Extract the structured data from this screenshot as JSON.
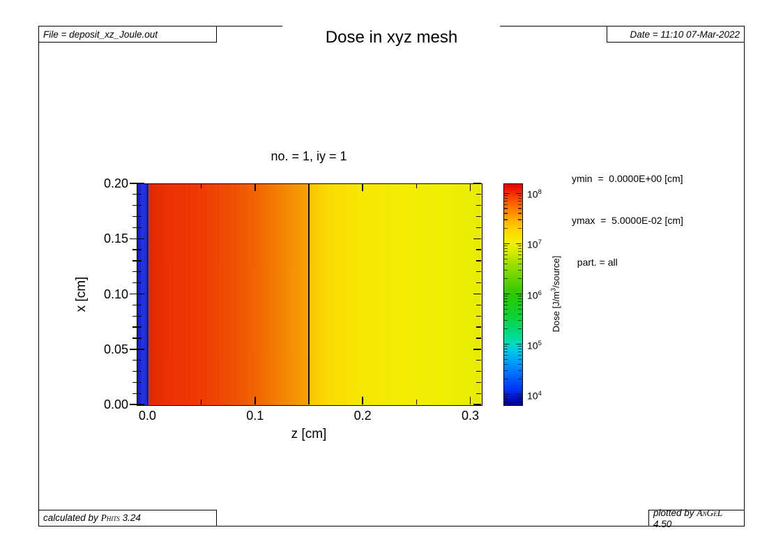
{
  "header": {
    "file_label": "File = deposit_xz_Joule.out",
    "title": "Dose in xyz mesh",
    "date_label": "Date = 11:10 07-Mar-2022"
  },
  "footer": {
    "calculated": {
      "prefix": "calculated by ",
      "brand": "Phits",
      "version": " 3.24"
    },
    "plotted": {
      "prefix": "plotted by ",
      "brand": "AnGeL",
      "version": " 4.50"
    }
  },
  "plot": {
    "subtitle": "no. =  1,  iy =  1",
    "info_lines": [
      "ymin  =  0.0000E+00 [cm]",
      "ymax  =  5.0000E-02 [cm]",
      "  part. = all"
    ],
    "xlabel": "z [cm]",
    "ylabel": "x [cm]"
  },
  "colorbar": {
    "label_pre": "Dose [J/m",
    "label_sup": "3",
    "label_post": "/source]"
  },
  "chart_data": {
    "type": "heatmap",
    "title": "Dose in xyz mesh",
    "subtitle": "no. = 1, iy = 1",
    "xlabel": "z [cm]",
    "ylabel": "x [cm]",
    "xlim": [
      -0.01,
      0.31
    ],
    "ylim": [
      0.0,
      0.2
    ],
    "x_major_ticks": [
      0.0,
      0.1,
      0.2,
      0.3
    ],
    "x_major_tick_labels": [
      "0.0",
      "0.1",
      "0.2",
      "0.3"
    ],
    "x_minor_ticks": [
      0.05,
      0.15,
      0.25
    ],
    "y_major_ticks": [
      0.0,
      0.05,
      0.1,
      0.15,
      0.2
    ],
    "y_major_tick_labels": [
      "0.00",
      "0.05",
      "0.10",
      "0.15",
      "0.20"
    ],
    "y_minor_step": 0.01,
    "grid": false,
    "legend": "colorbar-right",
    "colorbar": {
      "scale": "log",
      "base": "10",
      "label": "Dose [J/m3/source]",
      "exp_min": 3.8,
      "exp_max": 8.2,
      "decade_exponents": [
        4,
        5,
        6,
        7,
        8
      ]
    },
    "boundary_lines_z": [
      0.0,
      0.15
    ],
    "uniform_along_x": true,
    "shown_parameters": {
      "ymin_cm": "0.0000E+00",
      "ymax_cm": "5.0000E-02",
      "part": "all",
      "no": 1,
      "iy": 1
    },
    "regions": [
      {
        "z_range": [
          -0.01,
          0.0
        ],
        "description": "thin blue band upstream of target",
        "approx_dose_J_m3_source": 10000.0
      },
      {
        "z_range": [
          0.0,
          0.15
        ],
        "description": "first layer, red to orange, dose falling with depth",
        "approx_dose_profile": [
          {
            "z": 0.01,
            "dose": 130000000.0
          },
          {
            "z": 0.05,
            "dose": 140000000.0
          },
          {
            "z": 0.1,
            "dose": 60000000.0
          },
          {
            "z": 0.148,
            "dose": 30000000.0
          }
        ]
      },
      {
        "z_range": [
          0.15,
          0.31
        ],
        "description": "second layer, yellow, slowly decreasing dose",
        "approx_dose_profile": [
          {
            "z": 0.16,
            "dose": 14000000.0
          },
          {
            "z": 0.23,
            "dose": 11000000.0
          },
          {
            "z": 0.305,
            "dose": 9000000.0
          }
        ]
      }
    ]
  }
}
